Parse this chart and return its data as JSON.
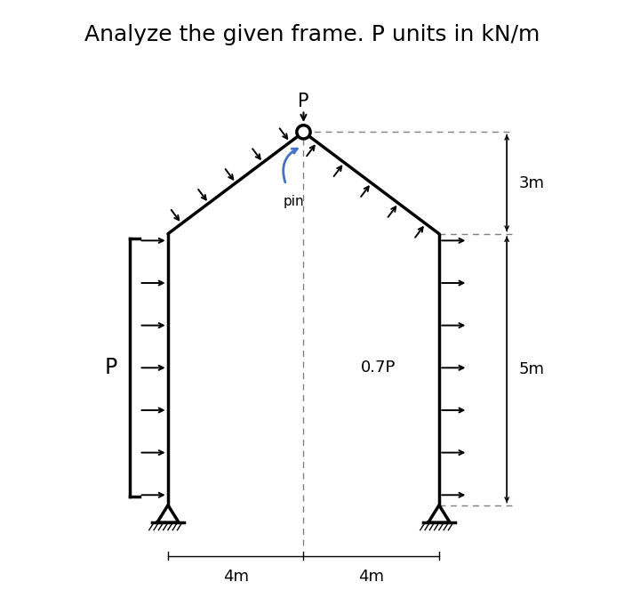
{
  "title": "Analyze the given frame. P units in kN/m",
  "title_fontsize": 18,
  "bg_color": "#ffffff",
  "line_color": "#000000",
  "blue_arrow_color": "#4472C4",
  "dim_4m_left_label": "4m",
  "dim_4m_right_label": "4m",
  "dim_3m_label": "3m",
  "dim_5m_label": "5m",
  "label_P": "P",
  "label_07P": "0.7P",
  "label_pin": "pin",
  "label_P_top": "P",
  "LB": [
    2.0,
    0.0
  ],
  "RB": [
    10.0,
    0.0
  ],
  "LK": [
    2.0,
    8.0
  ],
  "RK": [
    10.0,
    8.0
  ],
  "AP": [
    6.0,
    11.0
  ],
  "xlim": [
    -1.5,
    14.0
  ],
  "ylim": [
    -2.5,
    13.5
  ],
  "figwidth": 7.02,
  "figheight": 6.63,
  "dpi": 100
}
